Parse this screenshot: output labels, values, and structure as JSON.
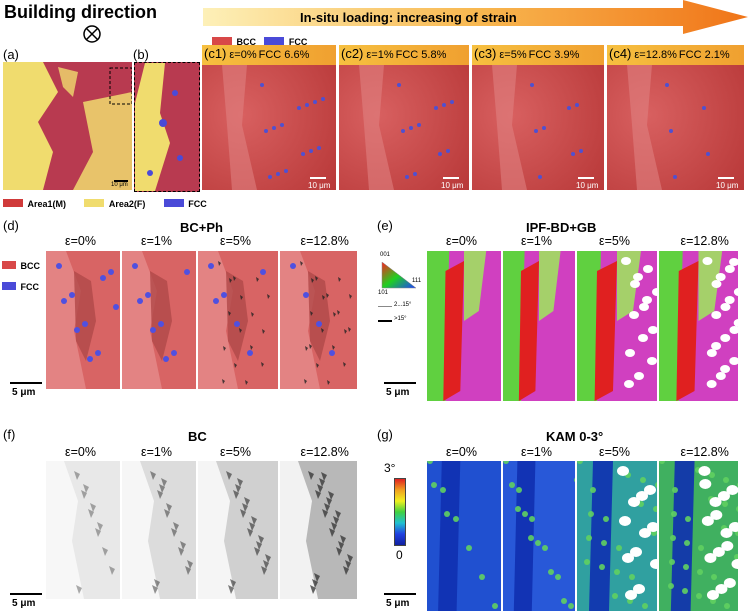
{
  "header": {
    "building_direction": "Building direction",
    "insitu_label": "In-situ loading: increasing of strain"
  },
  "panels": {
    "a": "(a)",
    "b": "(b)",
    "c1": "(c1)",
    "c2": "(c2)",
    "c3": "(c3)",
    "c4": "(c4)",
    "d": "(d)",
    "e": "(e)",
    "f": "(f)",
    "g": "(g)"
  },
  "c_headers": [
    {
      "strain": "ε=0%",
      "fcc": "FCC 6.6%"
    },
    {
      "strain": "ε=1%",
      "fcc": "FCC 5.8%"
    },
    {
      "strain": "ε=5%",
      "fcc": "FCC 3.9%"
    },
    {
      "strain": "ε=12.8%",
      "fcc": "FCC 2.1%"
    }
  ],
  "phase_legend_top": {
    "bcc": "BCC",
    "fcc": "FCC"
  },
  "area_legend": {
    "area1": "Area1(M)",
    "area2": "Area2(F)",
    "fcc": "FCC"
  },
  "scale_10um": "10 μm",
  "scale_5um": "5 μm",
  "strains": [
    "ε=0%",
    "ε=1%",
    "ε=5%",
    "ε=12.8%"
  ],
  "titles": {
    "d": "BC+Ph",
    "e": "IPF-BD+GB",
    "f": "BC",
    "g": "KAM 0-3°"
  },
  "d_legend": {
    "bcc": "BCC",
    "fcc": "FCC"
  },
  "ipf_legend": {
    "c001": "001",
    "c101": "101",
    "c111": "111",
    "gb_low": "2...15°",
    "gb_high": ">15°"
  },
  "kam_scale": {
    "max": "3°",
    "min": "0"
  },
  "colors": {
    "bcc_red": "#d84848",
    "fcc_blue": "#4a4ad8",
    "area1_red": "#d03a3a",
    "area2_yellow": "#f0dc6e",
    "arrow_start": "#fde8a0",
    "arrow_end": "#f07a1a"
  }
}
